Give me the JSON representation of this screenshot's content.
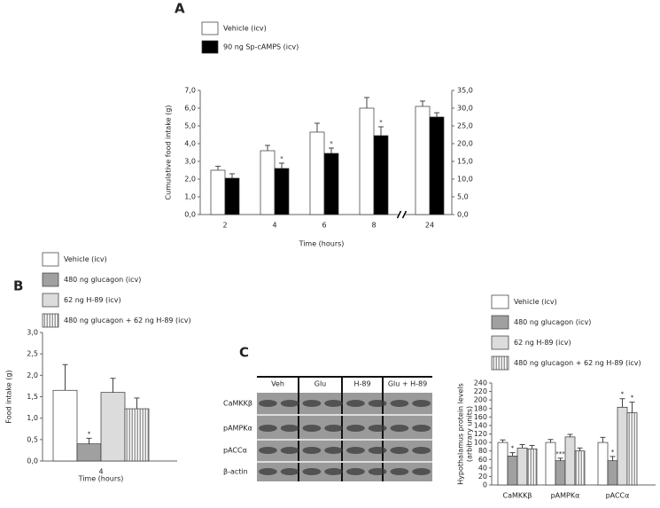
{
  "chart_data": [
    {
      "type": "bar",
      "panel": "A",
      "x_label": "Time (hours)",
      "y_label": "Cumulative food intake (g)",
      "categories": [
        "2",
        "4",
        "6",
        "8",
        "24"
      ],
      "category_axis": [
        "y",
        "y",
        "y",
        "y",
        "y2"
      ],
      "axis_break": true,
      "series": [
        {
          "name": "Vehicle (icv)",
          "color": "#ffffff",
          "values": [
            2.5,
            3.6,
            4.65,
            6.0,
            30.5
          ],
          "errors": [
            0.22,
            0.3,
            0.5,
            0.6,
            1.5
          ],
          "significance": [
            null,
            null,
            null,
            null,
            null
          ]
        },
        {
          "name": "90 ng Sp-cAMPS (icv)",
          "color": "#000000",
          "values": [
            2.05,
            2.6,
            3.45,
            4.45,
            27.5
          ],
          "errors": [
            0.25,
            0.3,
            0.3,
            0.5,
            1.2
          ],
          "significance": [
            null,
            "*",
            "*",
            "*",
            null
          ]
        }
      ],
      "ylim": [
        0,
        7
      ],
      "yticks": [
        {
          "value": 0,
          "label": "0,0"
        },
        {
          "value": 1,
          "label": "1,0"
        },
        {
          "value": 2,
          "label": "2,0"
        },
        {
          "value": 3,
          "label": "3,0"
        },
        {
          "value": 4,
          "label": "4,0"
        },
        {
          "value": 5,
          "label": "5,0"
        },
        {
          "value": 6,
          "label": "6,0"
        },
        {
          "value": 7,
          "label": "7,0"
        }
      ],
      "y2lim": [
        0,
        35
      ],
      "y2ticks": [
        {
          "value": 0,
          "label": "0,0"
        },
        {
          "value": 5,
          "label": "5,0"
        },
        {
          "value": 10,
          "label": "10,0"
        },
        {
          "value": 15,
          "label": "15,0"
        },
        {
          "value": 20,
          "label": "20,0"
        },
        {
          "value": 25,
          "label": "25,0"
        },
        {
          "value": 30,
          "label": "30,0"
        },
        {
          "value": 35,
          "label": "35,0"
        }
      ]
    },
    {
      "type": "bar",
      "panel": "B",
      "x_label": "Time (hours)",
      "y_label": "Food intake (g)",
      "categories": [
        "4"
      ],
      "series": [
        {
          "name": "Vehicle (icv)",
          "color": "#ffffff",
          "values": [
            1.65
          ],
          "errors": [
            0.6
          ],
          "significance": [
            null
          ]
        },
        {
          "name": "480 ng glucagon (icv)",
          "color": "#a0a0a0",
          "values": [
            0.4
          ],
          "errors": [
            0.13
          ],
          "significance": [
            "*"
          ]
        },
        {
          "name": "62 ng H-89 (icv)",
          "color": "#dcdcdc",
          "values": [
            1.6
          ],
          "errors": [
            0.33
          ],
          "significance": [
            null
          ]
        },
        {
          "name": "480 ng glucagon + 62 ng H-89 (icv)",
          "color": "#ffffff",
          "pattern": "vertical-stripes",
          "values": [
            1.22
          ],
          "errors": [
            0.25
          ],
          "significance": [
            null
          ]
        }
      ],
      "ylim": [
        0,
        3
      ],
      "yticks": [
        {
          "value": 0,
          "label": "0,0"
        },
        {
          "value": 0.5,
          "label": "0,5"
        },
        {
          "value": 1,
          "label": "1,0"
        },
        {
          "value": 1.5,
          "label": "1,5"
        },
        {
          "value": 2,
          "label": "2,0"
        },
        {
          "value": 2.5,
          "label": "2,5"
        },
        {
          "value": 3,
          "label": "3,0"
        }
      ]
    },
    {
      "type": "bar",
      "panel": "C",
      "y_label": [
        "Hypothalamus protein levels",
        "(arbitrary units)"
      ],
      "categories": [
        "CaMKKβ",
        "pAMPKα",
        "pACCα"
      ],
      "series": [
        {
          "name": "Vehicle (icv)",
          "color": "#ffffff",
          "values": [
            100,
            100,
            100
          ],
          "errors": [
            6,
            7,
            12
          ],
          "significance": [
            null,
            null,
            null
          ]
        },
        {
          "name": "480 ng glucagon (icv)",
          "color": "#a0a0a0",
          "values": [
            68,
            57,
            57
          ],
          "errors": [
            8,
            6,
            10
          ],
          "significance": [
            "*",
            "***",
            "*"
          ]
        },
        {
          "name": "62 ng H-89 (icv)",
          "color": "#dcdcdc",
          "values": [
            87,
            113,
            183
          ],
          "errors": [
            8,
            6,
            20
          ],
          "significance": [
            null,
            null,
            "*"
          ]
        },
        {
          "name": "480 ng glucagon + 62 ng H-89 (icv)",
          "color": "#ffffff",
          "pattern": "vertical-stripes",
          "values": [
            85,
            80,
            170
          ],
          "errors": [
            8,
            7,
            25
          ],
          "significance": [
            null,
            null,
            "*"
          ]
        }
      ],
      "ylim": [
        0,
        240
      ],
      "yticks": [
        0,
        20,
        40,
        60,
        80,
        100,
        120,
        140,
        160,
        180,
        200,
        220,
        240
      ]
    }
  ],
  "blot": {
    "lanes": [
      "Veh",
      "Glu",
      "H-89",
      "Glu + H-89"
    ],
    "rows": [
      "CaMKKβ",
      "pAMPKα",
      "pACCα",
      "β-actin"
    ]
  }
}
